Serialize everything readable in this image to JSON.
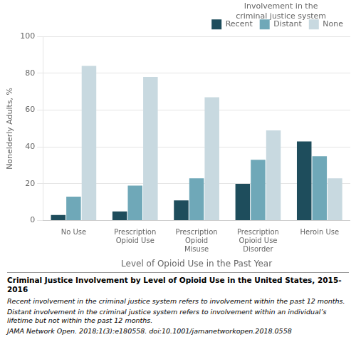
{
  "chart_data": {
    "type": "bar",
    "title": "Criminal Justice Involvement by Level of Opioid Use in the United States, 2015-2016",
    "categories": [
      "No Use",
      "Prescription\nOpioid Use",
      "Prescription\nOpioid\nMisuse",
      "Prescription\nOpioid Use\nDisorder",
      "Heroin Use"
    ],
    "series": [
      {
        "name": "Recent",
        "color": "#1e4d5c",
        "values": [
          3,
          5,
          11,
          20,
          43
        ]
      },
      {
        "name": "Distant",
        "color": "#6fa8b8",
        "values": [
          13,
          19,
          23,
          33,
          35
        ]
      },
      {
        "name": "None",
        "color": "#c8d9e0",
        "values": [
          84,
          78,
          67,
          49,
          23
        ]
      }
    ],
    "ylabel": "Nonelderly Adults, %",
    "xlabel": "Level of Opioid Use in the Past Year",
    "ylim": [
      0,
      100
    ],
    "yticks": [
      0,
      20,
      40,
      60,
      80,
      100
    ],
    "grid": true,
    "legend": "upper right",
    "legend_title": "Involvement in the\ncriminal justice system",
    "annotations": [
      "Recent involvement in the criminal justice system refers to involvement within the past 12 months.",
      "Distant involvement in the criminal justice system refers to involvement within an individual’s lifetime but not within the past 12 months.",
      "JAMA Network Open. 2018;1(3):e180558. doi:10.1001/jamanetworkopen.2018.0558"
    ]
  }
}
